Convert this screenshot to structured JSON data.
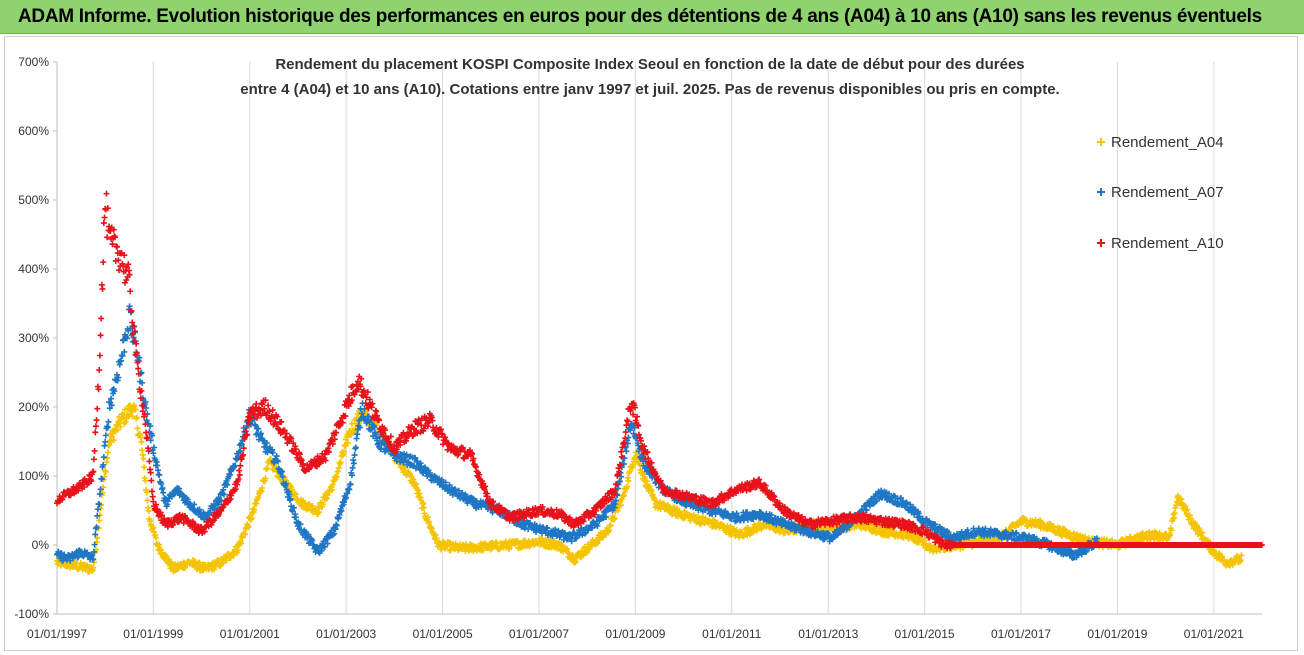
{
  "banner": {
    "title": "ADAM Informe. Evolution historique des performances en euros pour des détentions de 4 ans (A04) à 10 ans (A10) sans les revenus éventuels"
  },
  "colors": {
    "banner_bg": "#8fd36f",
    "A04": "#f5c400",
    "A07": "#1f77c4",
    "A10": "#e8121b",
    "grid": "#d9d9d9"
  },
  "chart_data": {
    "type": "scatter",
    "title_lines": [
      "Rendement du placement KOSPI Composite Index Seoul en fonction de la date de début pour des durées",
      "entre 4 (A04) et 10 ans (A10). Cotations entre janv 1997 et juil. 2025. Pas de revenus disponibles ou pris en compte."
    ],
    "xlabel": "",
    "ylabel": "",
    "x_range": [
      "1997-01-01",
      "2022-01-01"
    ],
    "ylim": [
      -100,
      700
    ],
    "y_ticks": [
      -100,
      0,
      100,
      200,
      300,
      400,
      500,
      600,
      700
    ],
    "y_tick_labels": [
      "-100%",
      "0%",
      "100%",
      "200%",
      "300%",
      "400%",
      "500%",
      "600%",
      "700%"
    ],
    "x_ticks": [
      "1997-01-01",
      "1999-01-01",
      "2001-01-01",
      "2003-01-01",
      "2005-01-01",
      "2007-01-01",
      "2009-01-01",
      "2011-01-01",
      "2013-01-01",
      "2015-01-01",
      "2017-01-01",
      "2019-01-01",
      "2021-01-01"
    ],
    "x_tick_labels": [
      "01/01/1997",
      "01/01/1999",
      "01/01/2001",
      "01/01/2003",
      "01/01/2005",
      "01/01/2007",
      "01/01/2009",
      "01/01/2011",
      "01/01/2013",
      "01/01/2015",
      "01/01/2017",
      "01/01/2019",
      "01/01/2021"
    ],
    "grid": "vertical",
    "legend_position": "right",
    "marker": "+",
    "series": [
      {
        "name": "Rendement_A04",
        "color": "#f5c400",
        "end": "2021-08-01",
        "points": [
          [
            "1997-01-01",
            -25
          ],
          [
            "1997-04-01",
            -28
          ],
          [
            "1997-07-01",
            -32
          ],
          [
            "1997-10-01",
            -35
          ],
          [
            "1997-12-01",
            60
          ],
          [
            "1998-02-01",
            150
          ],
          [
            "1998-05-01",
            180
          ],
          [
            "1998-08-01",
            200
          ],
          [
            "1998-10-01",
            150
          ],
          [
            "1998-12-01",
            40
          ],
          [
            "1999-02-01",
            0
          ],
          [
            "1999-06-01",
            -35
          ],
          [
            "1999-10-01",
            -25
          ],
          [
            "2000-02-01",
            -35
          ],
          [
            "2000-06-01",
            -25
          ],
          [
            "2000-10-01",
            -5
          ],
          [
            "2001-02-01",
            50
          ],
          [
            "2001-06-01",
            120
          ],
          [
            "2001-10-01",
            90
          ],
          [
            "2002-02-01",
            60
          ],
          [
            "2002-06-01",
            50
          ],
          [
            "2002-10-01",
            90
          ],
          [
            "2003-02-01",
            165
          ],
          [
            "2003-05-01",
            190
          ],
          [
            "2003-09-01",
            170
          ],
          [
            "2004-01-01",
            130
          ],
          [
            "2004-06-01",
            90
          ],
          [
            "2004-09-01",
            40
          ],
          [
            "2004-12-01",
            0
          ],
          [
            "2005-06-01",
            -5
          ],
          [
            "2006-01-01",
            -2
          ],
          [
            "2006-06-01",
            0
          ],
          [
            "2007-01-01",
            5
          ],
          [
            "2007-06-01",
            0
          ],
          [
            "2007-10-01",
            -20
          ],
          [
            "2008-02-01",
            0
          ],
          [
            "2008-06-01",
            20
          ],
          [
            "2008-10-01",
            70
          ],
          [
            "2009-01-01",
            135
          ],
          [
            "2009-03-01",
            100
          ],
          [
            "2009-06-01",
            60
          ],
          [
            "2009-10-01",
            50
          ],
          [
            "2010-03-01",
            40
          ],
          [
            "2010-09-01",
            30
          ],
          [
            "2011-03-01",
            15
          ],
          [
            "2011-09-01",
            30
          ],
          [
            "2012-03-01",
            20
          ],
          [
            "2012-09-01",
            30
          ],
          [
            "2013-03-01",
            25
          ],
          [
            "2013-09-01",
            30
          ],
          [
            "2014-03-01",
            20
          ],
          [
            "2014-09-01",
            15
          ],
          [
            "2015-03-01",
            -5
          ],
          [
            "2015-09-01",
            0
          ],
          [
            "2016-03-01",
            5
          ],
          [
            "2016-09-01",
            15
          ],
          [
            "2017-01-01",
            35
          ],
          [
            "2017-06-01",
            30
          ],
          [
            "2018-01-01",
            15
          ],
          [
            "2018-06-01",
            5
          ],
          [
            "2019-01-01",
            0
          ],
          [
            "2019-06-01",
            10
          ],
          [
            "2019-10-01",
            15
          ],
          [
            "2020-02-01",
            10
          ],
          [
            "2020-04-01",
            70
          ],
          [
            "2020-08-01",
            30
          ],
          [
            "2021-01-01",
            -10
          ],
          [
            "2021-04-01",
            -25
          ],
          [
            "2021-08-01",
            -20
          ]
        ]
      },
      {
        "name": "Rendement_A07",
        "color": "#1f77c4",
        "end": "2018-08-01",
        "points": [
          [
            "1997-01-01",
            -15
          ],
          [
            "1997-04-01",
            -20
          ],
          [
            "1997-07-01",
            -10
          ],
          [
            "1997-10-01",
            -20
          ],
          [
            "1997-12-01",
            90
          ],
          [
            "1998-02-01",
            200
          ],
          [
            "1998-05-01",
            270
          ],
          [
            "1998-07-01",
            330
          ],
          [
            "1998-09-01",
            280
          ],
          [
            "1998-11-01",
            200
          ],
          [
            "1999-01-01",
            140
          ],
          [
            "1999-04-01",
            60
          ],
          [
            "1999-07-01",
            80
          ],
          [
            "1999-10-01",
            60
          ],
          [
            "2000-02-01",
            40
          ],
          [
            "2000-06-01",
            70
          ],
          [
            "2000-10-01",
            130
          ],
          [
            "2001-01-01",
            190
          ],
          [
            "2001-04-01",
            150
          ],
          [
            "2001-08-01",
            120
          ],
          [
            "2002-01-01",
            30
          ],
          [
            "2002-06-01",
            -10
          ],
          [
            "2002-10-01",
            20
          ],
          [
            "2003-02-01",
            90
          ],
          [
            "2003-05-01",
            200
          ],
          [
            "2003-09-01",
            150
          ],
          [
            "2004-01-01",
            130
          ],
          [
            "2004-06-01",
            120
          ],
          [
            "2004-10-01",
            100
          ],
          [
            "2005-03-01",
            80
          ],
          [
            "2005-09-01",
            60
          ],
          [
            "2006-03-01",
            50
          ],
          [
            "2006-09-01",
            30
          ],
          [
            "2007-03-01",
            20
          ],
          [
            "2007-09-01",
            10
          ],
          [
            "2008-03-01",
            30
          ],
          [
            "2008-08-01",
            60
          ],
          [
            "2008-12-01",
            180
          ],
          [
            "2009-03-01",
            120
          ],
          [
            "2009-08-01",
            80
          ],
          [
            "2010-02-01",
            60
          ],
          [
            "2010-08-01",
            50
          ],
          [
            "2011-02-01",
            40
          ],
          [
            "2011-08-01",
            45
          ],
          [
            "2012-02-01",
            30
          ],
          [
            "2012-08-01",
            20
          ],
          [
            "2013-02-01",
            10
          ],
          [
            "2013-08-01",
            40
          ],
          [
            "2014-02-01",
            75
          ],
          [
            "2014-08-01",
            60
          ],
          [
            "2015-02-01",
            30
          ],
          [
            "2015-08-01",
            10
          ],
          [
            "2016-02-01",
            20
          ],
          [
            "2016-08-01",
            15
          ],
          [
            "2017-02-01",
            10
          ],
          [
            "2017-08-01",
            0
          ],
          [
            "2018-02-01",
            -15
          ],
          [
            "2018-08-01",
            5
          ]
        ]
      },
      {
        "name": "Rendement_A10",
        "color": "#e8121b",
        "end": "2021-12-31",
        "points": [
          [
            "1997-01-01",
            65
          ],
          [
            "1997-04-01",
            75
          ],
          [
            "1997-07-01",
            85
          ],
          [
            "1997-10-01",
            100
          ],
          [
            "1997-11-15",
            250
          ],
          [
            "1998-01-01",
            500
          ],
          [
            "1998-02-01",
            440
          ],
          [
            "1998-05-01",
            420
          ],
          [
            "1998-07-01",
            380
          ],
          [
            "1998-09-01",
            260
          ],
          [
            "1998-11-01",
            180
          ],
          [
            "1999-01-01",
            60
          ],
          [
            "1999-04-01",
            30
          ],
          [
            "1999-08-01",
            40
          ],
          [
            "2000-01-01",
            20
          ],
          [
            "2000-06-01",
            50
          ],
          [
            "2000-10-01",
            90
          ],
          [
            "2001-01-01",
            190
          ],
          [
            "2001-05-01",
            200
          ],
          [
            "2001-10-01",
            160
          ],
          [
            "2002-03-01",
            110
          ],
          [
            "2002-08-01",
            130
          ],
          [
            "2003-01-01",
            200
          ],
          [
            "2003-04-01",
            240
          ],
          [
            "2003-08-01",
            190
          ],
          [
            "2004-01-01",
            140
          ],
          [
            "2004-06-01",
            170
          ],
          [
            "2004-10-01",
            180
          ],
          [
            "2005-03-01",
            140
          ],
          [
            "2005-08-01",
            130
          ],
          [
            "2006-01-01",
            60
          ],
          [
            "2006-06-01",
            40
          ],
          [
            "2007-01-01",
            50
          ],
          [
            "2007-06-01",
            45
          ],
          [
            "2007-10-01",
            30
          ],
          [
            "2008-03-01",
            50
          ],
          [
            "2008-08-01",
            80
          ],
          [
            "2008-12-01",
            210
          ],
          [
            "2009-03-01",
            140
          ],
          [
            "2009-08-01",
            80
          ],
          [
            "2010-02-01",
            70
          ],
          [
            "2010-08-01",
            60
          ],
          [
            "2011-02-01",
            80
          ],
          [
            "2011-08-01",
            90
          ],
          [
            "2012-02-01",
            50
          ],
          [
            "2012-08-01",
            30
          ],
          [
            "2013-02-01",
            35
          ],
          [
            "2013-08-01",
            40
          ],
          [
            "2014-02-01",
            35
          ],
          [
            "2014-08-01",
            30
          ],
          [
            "2015-01-01",
            20
          ],
          [
            "2015-06-01",
            0
          ],
          [
            "2017-01-01",
            0
          ],
          [
            "2019-01-01",
            0
          ],
          [
            "2021-12-31",
            0
          ]
        ]
      }
    ]
  }
}
